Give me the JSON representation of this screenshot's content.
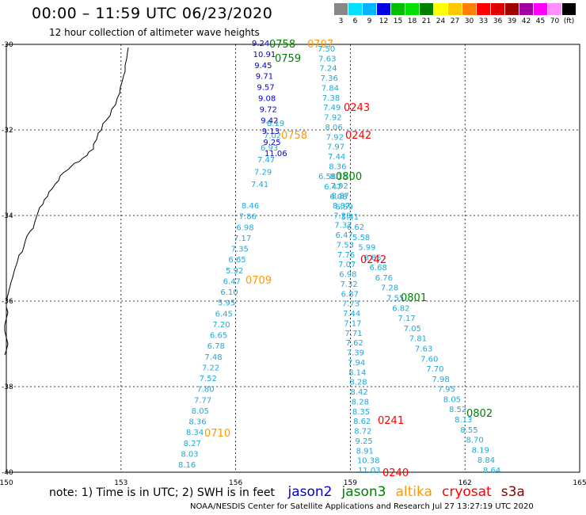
{
  "title": "00:00 – 11:59 UTC 06/23/2020",
  "subtitle": "12 hour collection of altimeter wave heights",
  "colorbar": {
    "colors": [
      "#888888",
      "#00e0ff",
      "#00b4ff",
      "#0000e0",
      "#00c000",
      "#00e000",
      "#008000",
      "#ffff00",
      "#ffc800",
      "#ff8000",
      "#ff0000",
      "#e00000",
      "#a00000",
      "#a000a0",
      "#ff00ff",
      "#ff90ff",
      "#000000"
    ],
    "labels": [
      "3",
      "6",
      "9",
      "12",
      "15",
      "18",
      "21",
      "24",
      "27",
      "30",
      "33",
      "36",
      "39",
      "42",
      "45",
      "70",
      "(ft)"
    ]
  },
  "map": {
    "lon_ticks": [
      "150",
      "153",
      "156",
      "159",
      "162",
      "165"
    ],
    "lat_ticks": [
      "-30",
      "-32",
      "-34",
      "-36",
      "-38",
      "-40"
    ],
    "lon_range": [
      150,
      165
    ],
    "lat_range": [
      -40,
      -30
    ]
  },
  "passes": [
    {
      "time": "0707",
      "satellite": "altika",
      "color": "#ff9900"
    },
    {
      "time": "0243",
      "satellite": "cryosat",
      "color": "#ff0000"
    },
    {
      "time": "0242",
      "satellite": "cryosat",
      "color": "#ff0000"
    },
    {
      "time": "0800",
      "satellite": "jason3",
      "color": "#008000"
    },
    {
      "time": "0242",
      "satellite": "cryosat",
      "color": "#ff0000"
    },
    {
      "time": "0709",
      "satellite": "altika",
      "color": "#ff9900"
    },
    {
      "time": "0801",
      "satellite": "jason3",
      "color": "#008000"
    },
    {
      "time": "0802",
      "satellite": "jason3",
      "color": "#008000"
    },
    {
      "time": "0241",
      "satellite": "cryosat",
      "color": "#ff0000"
    },
    {
      "time": "0710",
      "satellite": "altika",
      "color": "#ff9900"
    },
    {
      "time": "0240",
      "satellite": "cryosat",
      "color": "#ff0000"
    },
    {
      "time": "0758",
      "satellite": "jason3",
      "color": "#008000"
    },
    {
      "time": "0759",
      "satellite": "jason3",
      "color": "#008000"
    },
    {
      "time": "0758",
      "satellite": "altika",
      "color": "#ff9900"
    }
  ],
  "tracks": [
    {
      "color": "#1ea8d8",
      "values": [
        "7.50",
        "7.63",
        "7.24",
        "7.36",
        "7.84",
        "7.38",
        "7.49",
        "7.92",
        "8.06",
        "7.92",
        "7.97",
        "7.44",
        "8.36",
        "8.13",
        "7.92",
        "8.87",
        "8.87",
        "7.28",
        "7.37",
        "6.47",
        "7.53",
        "7.76",
        "7.07",
        "6.98",
        "7.32",
        "6.87",
        "7.73",
        "7.44",
        "7.17",
        "7.71",
        "7.62",
        "7.39",
        "7.94",
        "8.14",
        "8.28",
        "8.42",
        "8.28",
        "8.35",
        "8.62",
        "8.72",
        "9.25",
        "8.91",
        "10.38",
        "11.03"
      ]
    },
    {
      "color": "#1ea8d8",
      "values": [
        "8.46",
        "7.86",
        "6.98",
        "7.17",
        "7.35",
        "6.65",
        "5.92",
        "6.47",
        "6.10",
        "5.95",
        "6.45",
        "7.20",
        "6.65",
        "6.78",
        "7.48",
        "7.22",
        "7.52",
        "7.80",
        "7.77",
        "8.05",
        "8.36",
        "8.34",
        "8.27",
        "8.03",
        "8.16"
      ]
    },
    {
      "color": "#1ea8d8",
      "values": [
        "8.19",
        "7.02",
        "6.93",
        "7.47",
        "7.29",
        "7.41"
      ]
    },
    {
      "color": "#0000cc",
      "values": [
        "9.24",
        "10.91",
        "9.45",
        "9.71",
        "9.57",
        "9.08",
        "9.72",
        "9.42",
        "9.13",
        "9.25",
        "11.06"
      ]
    },
    {
      "color": "#1ea8d8",
      "values": [
        "6.58",
        "6.47",
        "6.08",
        "6.59",
        "5.41",
        "6.62",
        "5.58",
        "5.99",
        "6.85",
        "6.68",
        "6.76",
        "7.28",
        "7.55",
        "6.82",
        "7.17",
        "7.05",
        "7.81",
        "7.63",
        "7.60",
        "7.70",
        "7.98",
        "7.95",
        "8.05",
        "8.52",
        "8.13",
        "8.55",
        "8.70",
        "8.19",
        "8.84",
        "8.64"
      ]
    }
  ],
  "footer": {
    "note": "note: 1) Time is in UTC; 2) SWH is in feet",
    "satellites": [
      {
        "name": "jason2",
        "color": "#0000cc"
      },
      {
        "name": "jason3",
        "color": "#008000"
      },
      {
        "name": "altika",
        "color": "#ff9900"
      },
      {
        "name": "cryosat",
        "color": "#ff0000"
      },
      {
        "name": "s3a",
        "color": "#880000"
      }
    ]
  },
  "credit": "NOAA/NESDIS Center for Satellite Applications and Research    Jul 27 13:27:19 UTC 2020"
}
